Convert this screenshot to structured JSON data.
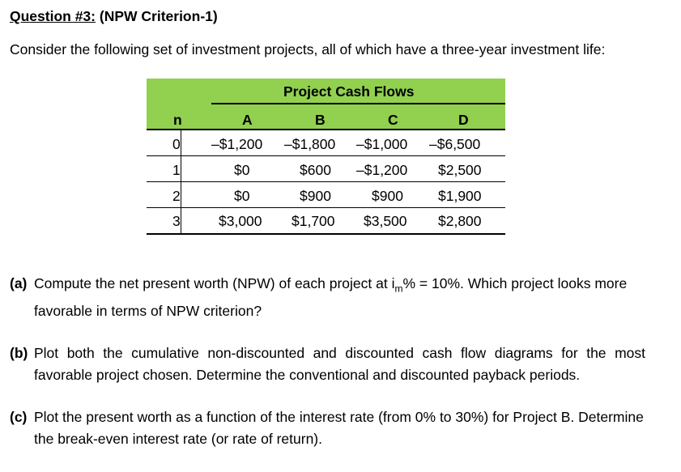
{
  "question": {
    "number_label": "Question #3:",
    "criterion": "(NPW Criterion-1)"
  },
  "intro_text": "Consider the following set of investment projects, all of which have a three-year investment life:",
  "table": {
    "group_header": "Project Cash Flows",
    "n_header": "n",
    "columns": [
      "A",
      "B",
      "C",
      "D"
    ],
    "rows": [
      {
        "n": "0",
        "A": "–$1,200",
        "B": "–$1,800",
        "C": "–$1,000",
        "D": "–$6,500"
      },
      {
        "n": "1",
        "A": "$0",
        "B": "$600",
        "C": "–$1,200",
        "D": "$2,500"
      },
      {
        "n": "2",
        "A": "$0",
        "B": "$900",
        "C": "$900",
        "D": "$1,900"
      },
      {
        "n": "3",
        "A": "$3,000",
        "B": "$1,700",
        "C": "$3,500",
        "D": "$2,800"
      }
    ]
  },
  "parts": [
    {
      "label": "(a)",
      "text_before": "Compute the net present worth (NPW) of each project at i",
      "subscript": "m",
      "text_after": "% = 10%. Which project looks more favorable in terms of NPW criterion?"
    },
    {
      "label": "(b)",
      "text": "Plot both the cumulative non-discounted and discounted cash flow diagrams for the most favorable project chosen. Determine the conventional and discounted payback periods."
    },
    {
      "label": "(c)",
      "text": "Plot the present worth as a function of the interest rate (from 0% to 30%) for Project B. Determine the break-even interest rate (or rate of return)."
    }
  ]
}
